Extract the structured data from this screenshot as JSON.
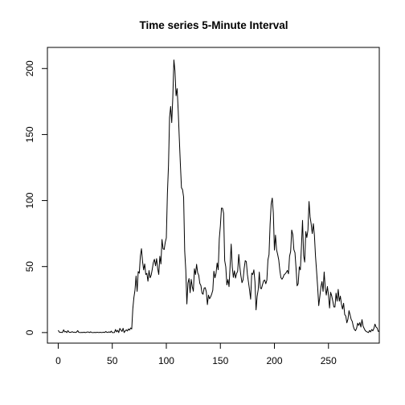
{
  "chart_data": {
    "type": "line",
    "title": "Time series 5-Minute Interval",
    "xlabel": "",
    "ylabel": "",
    "xlim": [
      -10,
      297
    ],
    "ylim": [
      -8,
      216
    ],
    "x_ticks": [
      0,
      50,
      100,
      150,
      200,
      250
    ],
    "y_ticks": [
      0,
      50,
      100,
      150,
      200
    ],
    "grid": false,
    "series_color": "#000000",
    "series": [
      {
        "x_start": 0,
        "x_step": 1,
        "values": [
          1.72,
          0.34,
          0.13,
          0.15,
          0.08,
          2.09,
          0.53,
          0.87,
          0,
          1.47,
          0.3,
          0.13,
          0.32,
          0.68,
          0.15,
          0.34,
          0.02,
          0.38,
          1.47,
          0.19,
          0.02,
          0.09,
          0.11,
          0.08,
          0.28,
          0,
          0.13,
          0.47,
          0.4,
          0.02,
          0.57,
          0.06,
          0,
          0.06,
          0.11,
          0,
          0.26,
          0.08,
          0.06,
          0.23,
          0.02,
          0.11,
          0.28,
          0.02,
          0.81,
          0.19,
          0.08,
          0.6,
          0.06,
          1.11,
          0.02,
          0,
          0.04,
          2.32,
          0.53,
          1.75,
          0,
          3.15,
          1.91,
          0.83,
          3.23,
          0,
          1.24,
          2.06,
          1.2,
          2.72,
          1.9,
          3.48,
          2.73,
          17.98,
          26.5,
          32.1,
          42.8,
          31.2,
          46.2,
          45,
          58,
          63.5,
          54,
          47.5,
          52,
          44,
          44.8,
          38.9,
          47,
          41.5,
          43.5,
          48,
          53.1,
          55.5,
          50.6,
          56,
          48.5,
          44,
          57.8,
          52,
          70.5,
          63.5,
          62.9,
          68.4,
          71.7,
          105.2,
          126.5,
          163,
          171.3,
          159,
          178.2,
          206.5,
          198.2,
          179.4,
          184.8,
          168,
          147.2,
          127.5,
          109.8,
          108.2,
          102.7,
          61.8,
          47.3,
          21.7,
          37.5,
          40.9,
          30.2,
          40.3,
          34.7,
          31.3,
          48.3,
          43.9,
          51.7,
          45.3,
          43.3,
          37.2,
          35.6,
          29.9,
          29,
          33.7,
          34,
          30.8,
          21.2,
          28.4,
          25.6,
          27.1,
          29.2,
          32.1,
          46.5,
          41.5,
          44.9,
          52.7,
          47.6,
          71.1,
          80.8,
          94.3,
          94.2,
          90.4,
          54.5,
          49.8,
          36.1,
          40.2,
          34.8,
          50.5,
          67,
          49.8,
          41.8,
          46.8,
          41.3,
          44.7,
          46.5,
          59.2,
          49.7,
          43,
          37.8,
          40,
          48.5,
          54.5,
          53.7,
          44,
          38.2,
          32.2,
          25.3,
          45,
          44,
          47.5,
          38.4,
          17.2,
          27.3,
          32.6,
          45.8,
          33.6,
          33.2,
          36.4,
          39.2,
          39.8,
          37,
          39.7,
          55.1,
          59,
          81.9,
          97.4,
          101.9,
          90.6,
          62.5,
          73.8,
          62.6,
          59.2,
          55,
          47.3,
          41.6,
          40.4,
          41.8,
          43.9,
          44.5,
          45.6,
          47.1,
          44.5,
          57.8,
          61.4,
          77.7,
          74.2,
          62.8,
          60.5,
          48.8,
          35.4,
          37,
          49.8,
          47.5,
          65.6,
          85,
          58.3,
          53.4,
          76.5,
          72,
          77.7,
          99.3,
          87.6,
          82.1,
          75,
          82.5,
          73.7,
          57.9,
          46.5,
          34.3,
          20.4,
          27.3,
          34.6,
          38.6,
          31.2,
          45.9,
          33.8,
          28.4,
          34.9,
          28.4,
          18.6,
          30.5,
          27.8,
          23.8,
          19.4,
          19.4,
          29.9,
          23.8,
          32.7,
          23.7,
          27.6,
          21.4,
          17.8,
          22.2,
          13.7,
          12.5,
          7.4,
          10.1,
          16.6,
          13.4,
          10,
          8.4,
          4.6,
          2.3,
          1.4,
          3.2,
          7.1,
          5.4,
          7.6,
          4.2,
          9.8,
          5,
          3.1,
          1.5,
          0.8,
          0.4,
          0,
          1.6,
          0.5,
          2.3,
          1.3,
          3.1,
          6.4,
          4.2,
          3.5,
          0.9,
          1.1
        ]
      }
    ]
  }
}
